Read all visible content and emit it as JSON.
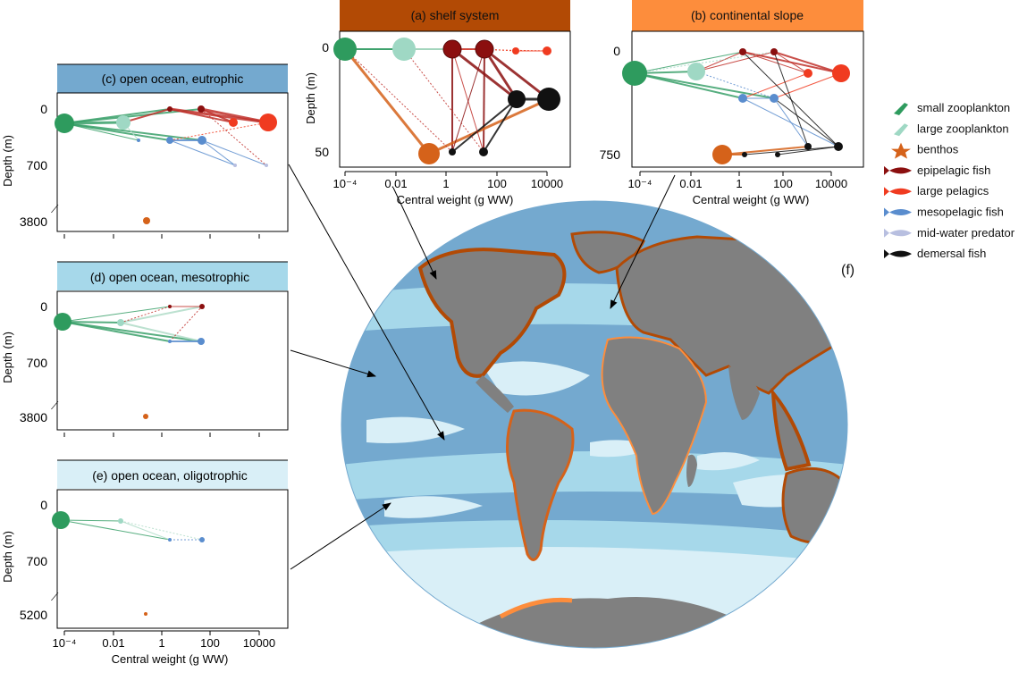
{
  "panels": {
    "a": {
      "title": "(a) shelf system",
      "color": "#b24a05",
      "y_ticks": [
        "0",
        "50"
      ],
      "y_label": "Depth (m)",
      "x_label": "Central weight (g WW)",
      "x_ticks": [
        "10⁻⁴",
        "0.01",
        "1",
        "100",
        "10000"
      ]
    },
    "b": {
      "title": "(b) continental slope",
      "color": "#fd8d3c",
      "y_ticks": [
        "0",
        "750"
      ],
      "x_label": "Central weight (g WW)",
      "x_ticks": [
        "10⁻⁴",
        "0.01",
        "1",
        "100",
        "10000"
      ]
    },
    "c": {
      "title": "(c) open ocean, eutrophic",
      "color": "#74a9cf",
      "y_ticks": [
        "0",
        "700",
        "3800"
      ],
      "y_label": "Depth (m)"
    },
    "d": {
      "title": "(d) open ocean, mesotrophic",
      "color": "#a6d8ea",
      "y_ticks": [
        "0",
        "700",
        "3800"
      ],
      "y_label": "Depth (m)"
    },
    "e": {
      "title": "(e) open ocean, oligotrophic",
      "color": "#d9eff7",
      "y_ticks": [
        "0",
        "700",
        "5200"
      ],
      "y_label": "Depth (m)",
      "x_label": "Central weight (g WW)",
      "x_ticks": [
        "10⁻⁴",
        "0.01",
        "1",
        "100",
        "10000"
      ]
    }
  },
  "map": {
    "label": "(f)",
    "ocean_colors": [
      "#74a9cf",
      "#a6d8ea",
      "#d9eff7"
    ],
    "land_color": "#808080",
    "shelf_color": "#b24a05",
    "slope_color": "#fd8d3c"
  },
  "legend": [
    {
      "label": "small zooplankton",
      "color": "#2e9b5e",
      "icon": "copepod-icon"
    },
    {
      "label": "large zooplankton",
      "color": "#9fd8c4",
      "icon": "krill-icon"
    },
    {
      "label": "benthos",
      "color": "#d5621a",
      "icon": "starfish-icon"
    },
    {
      "label": "epipelagic fish",
      "color": "#8b0f0f",
      "icon": "fish-icon"
    },
    {
      "label": "large pelagics",
      "color": "#f03b20",
      "icon": "tuna-icon"
    },
    {
      "label": "mesopelagic fish",
      "color": "#5a8dce",
      "icon": "lanternfish-icon"
    },
    {
      "label": "mid-water predator",
      "color": "#b8bfe0",
      "icon": "shark-icon"
    },
    {
      "label": "demersal fish",
      "color": "#111111",
      "icon": "cod-icon"
    }
  ]
}
